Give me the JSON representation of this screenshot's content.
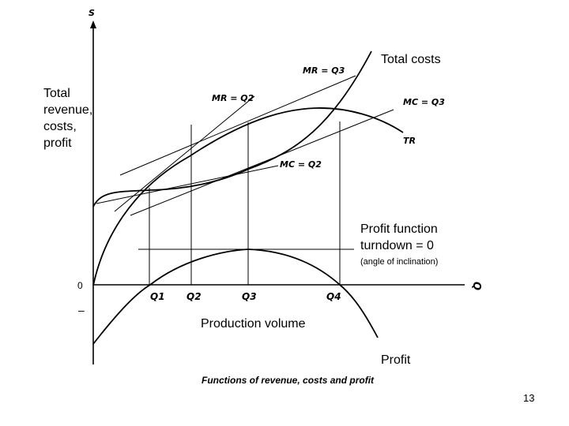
{
  "axes": {
    "y_symbol": "S",
    "x_symbol": "Q",
    "zero": "0",
    "minus": "–",
    "y_title_lines": [
      "Total",
      "revenue,",
      "costs,",
      "profit"
    ],
    "x_title": "Production volume"
  },
  "ticks": [
    "Q1",
    "Q2",
    "Q3",
    "Q4"
  ],
  "curves": {
    "total_costs": "Total costs",
    "tr": "TR",
    "profit": "Profit"
  },
  "tangent_labels": {
    "mr_q3": "MR = Q3",
    "mr_q2": "MR = Q2",
    "mc_q3": "MC = Q3",
    "mc_q2": "MC = Q2"
  },
  "profit_note": {
    "line1": "Profit function",
    "line2": "turndown = 0",
    "line3": "(angle of inclination)"
  },
  "caption": "Functions of revenue, costs and profit",
  "page_number": "13"
}
